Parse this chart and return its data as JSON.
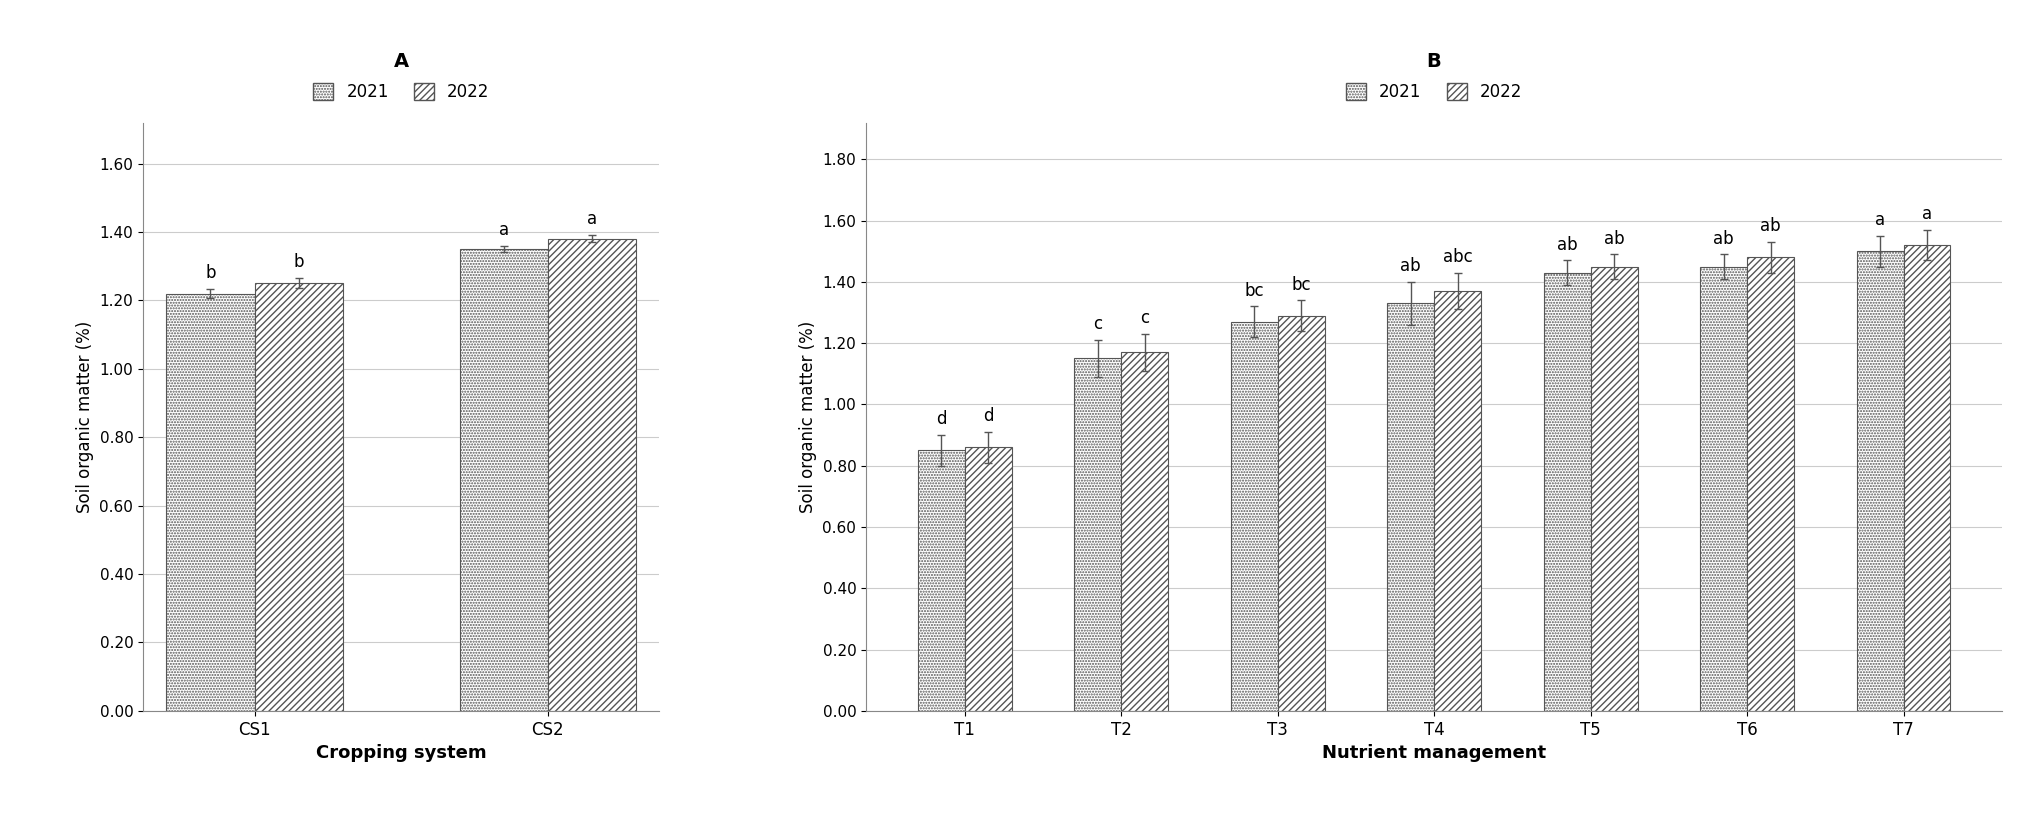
{
  "panel_A": {
    "title": "A",
    "categories": [
      "CS1",
      "CS2"
    ],
    "values_2021": [
      1.22,
      1.35
    ],
    "values_2022": [
      1.25,
      1.38
    ],
    "errors_2021": [
      0.012,
      0.008
    ],
    "errors_2022": [
      0.015,
      0.01
    ],
    "labels_2021": [
      "b",
      "a"
    ],
    "labels_2022": [
      "b",
      "a"
    ],
    "xlabel": "Cropping system",
    "ylabel": "Soil organic matter (%)",
    "ylim": [
      0,
      1.72
    ],
    "yticks": [
      0.0,
      0.2,
      0.4,
      0.6,
      0.8,
      1.0,
      1.2,
      1.4,
      1.6
    ]
  },
  "panel_B": {
    "title": "B",
    "categories": [
      "T1",
      "T2",
      "T3",
      "T4",
      "T5",
      "T6",
      "T7"
    ],
    "values_2021": [
      0.85,
      1.15,
      1.27,
      1.33,
      1.43,
      1.45,
      1.5
    ],
    "values_2022": [
      0.86,
      1.17,
      1.29,
      1.37,
      1.45,
      1.48,
      1.52
    ],
    "errors_2021": [
      0.05,
      0.06,
      0.05,
      0.07,
      0.04,
      0.04,
      0.05
    ],
    "errors_2022": [
      0.05,
      0.06,
      0.05,
      0.06,
      0.04,
      0.05,
      0.05
    ],
    "labels_2021": [
      "d",
      "c",
      "bc",
      "ab",
      "ab",
      "ab",
      "a"
    ],
    "labels_2022": [
      "d",
      "c",
      "bc",
      "abc",
      "ab",
      "ab",
      "a"
    ],
    "xlabel": "Nutrient management",
    "ylabel": "Soil organic matter (%)",
    "ylim": [
      0,
      1.92
    ],
    "yticks": [
      0.0,
      0.2,
      0.4,
      0.6,
      0.8,
      1.0,
      1.2,
      1.4,
      1.6,
      1.8
    ]
  },
  "legend_2021": "2021",
  "legend_2022": "2022",
  "bar_width": 0.3
}
